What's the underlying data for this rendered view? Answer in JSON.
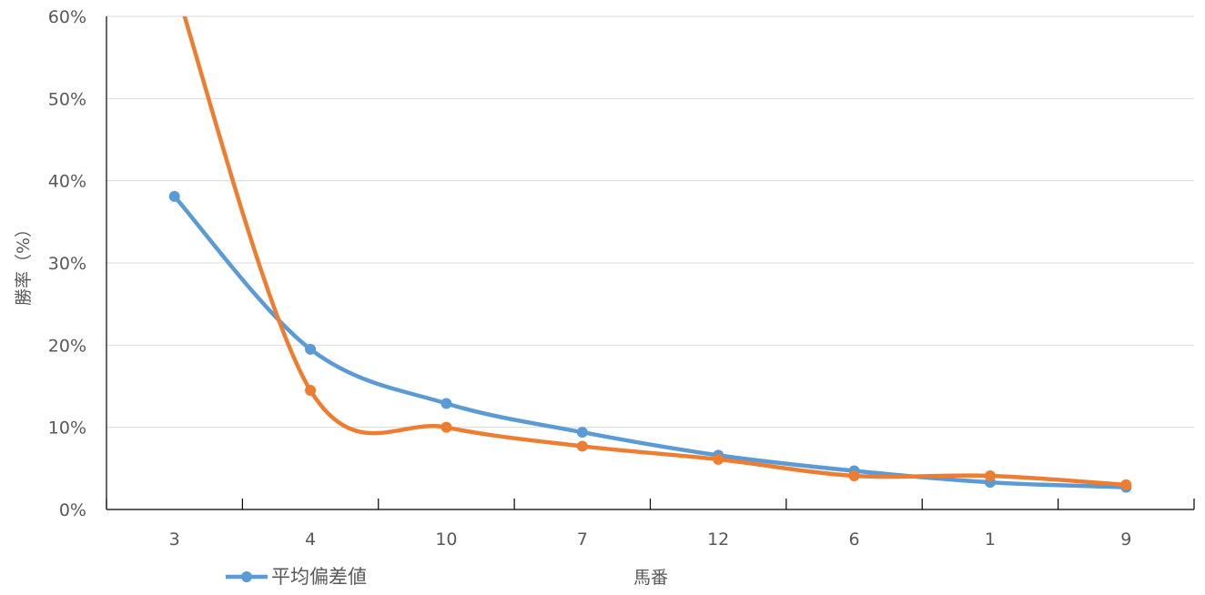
{
  "chart_data": {
    "type": "line",
    "title": "",
    "xlabel": "馬番",
    "ylabel": "勝率（%）",
    "categories": [
      "3",
      "4",
      "10",
      "7",
      "12",
      "6",
      "1",
      "9"
    ],
    "ylim": [
      0,
      60
    ],
    "yticks": [
      "0%",
      "10%",
      "20%",
      "30%",
      "40%",
      "50%",
      "60%"
    ],
    "grid": true,
    "legend": "bottom-left",
    "series": [
      {
        "name": "平均偏差値",
        "color": "#5B9BD5",
        "values": [
          38.1,
          19.5,
          12.9,
          9.4,
          6.6,
          4.7,
          3.3,
          2.7
        ]
      },
      {
        "name": "",
        "color": "#ED7D31",
        "values": [
          64,
          14.5,
          10.0,
          7.7,
          6.1,
          4.1,
          4.1,
          3.0
        ]
      }
    ]
  }
}
